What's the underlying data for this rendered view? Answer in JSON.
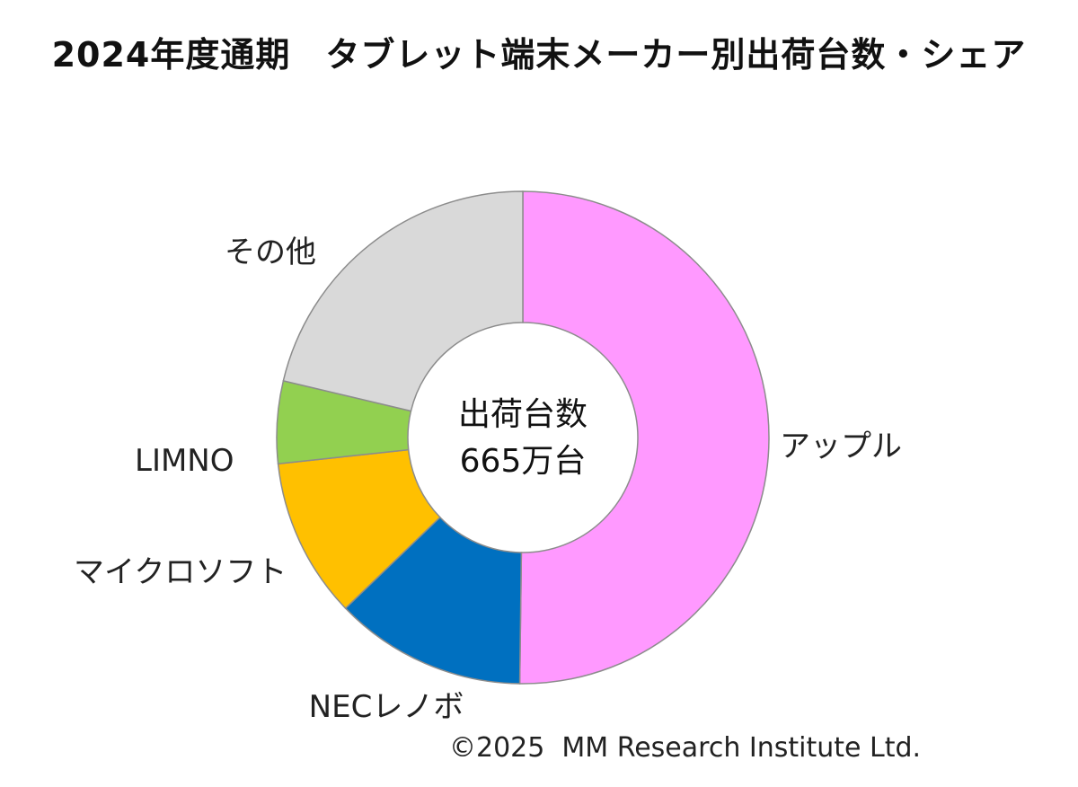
{
  "chart_data": {
    "type": "pie",
    "title": "2024年度通期　タブレット端末メーカー別出荷台数・シェア",
    "center_label": [
      "出荷台数",
      "665万台"
    ],
    "categories": [
      "アップル",
      "NECレノボ",
      "マイクロソフト",
      "LIMNO",
      "その他"
    ],
    "values": [
      50.2,
      12.6,
      10.5,
      5.4,
      21.3
    ],
    "colors": [
      "#ff99ff",
      "#0070c0",
      "#ffc000",
      "#92d050",
      "#d9d9d9"
    ],
    "start": "top",
    "direction": "clockwise",
    "hole": "donut"
  },
  "footer": {
    "copyright": "©2025  MM Research Institute Ltd."
  }
}
